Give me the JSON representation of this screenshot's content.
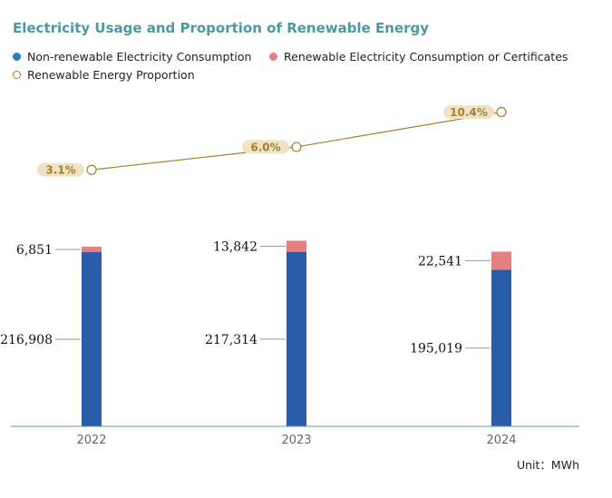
{
  "chart_data": {
    "type": "bar",
    "title": "Electricity Usage and Proportion of Renewable Energy",
    "categories": [
      "2022",
      "2023",
      "2024"
    ],
    "series": [
      {
        "name": "Non-renewable Electricity Consumption",
        "values": [
          216908,
          217314,
          195019
        ],
        "value_labels": [
          "216,908",
          "217,314",
          "195,019"
        ],
        "color": "#2a5caa",
        "kind": "stacked-bar"
      },
      {
        "name": "Renewable Electricity Consumption or Certificates",
        "values": [
          6851,
          13842,
          22541
        ],
        "value_labels": [
          "6,851",
          "13,842",
          "22,541"
        ],
        "color": "#e58080",
        "kind": "stacked-bar"
      },
      {
        "name": "Renewable Energy Proportion",
        "values": [
          3.1,
          6.0,
          10.4
        ],
        "value_labels": [
          "3.1%",
          "6.0%",
          "10.4%"
        ],
        "color": "#a87f2e",
        "kind": "line"
      }
    ],
    "unit_label": "Unit：MWh",
    "grid": false,
    "legend_position": "top-left"
  }
}
